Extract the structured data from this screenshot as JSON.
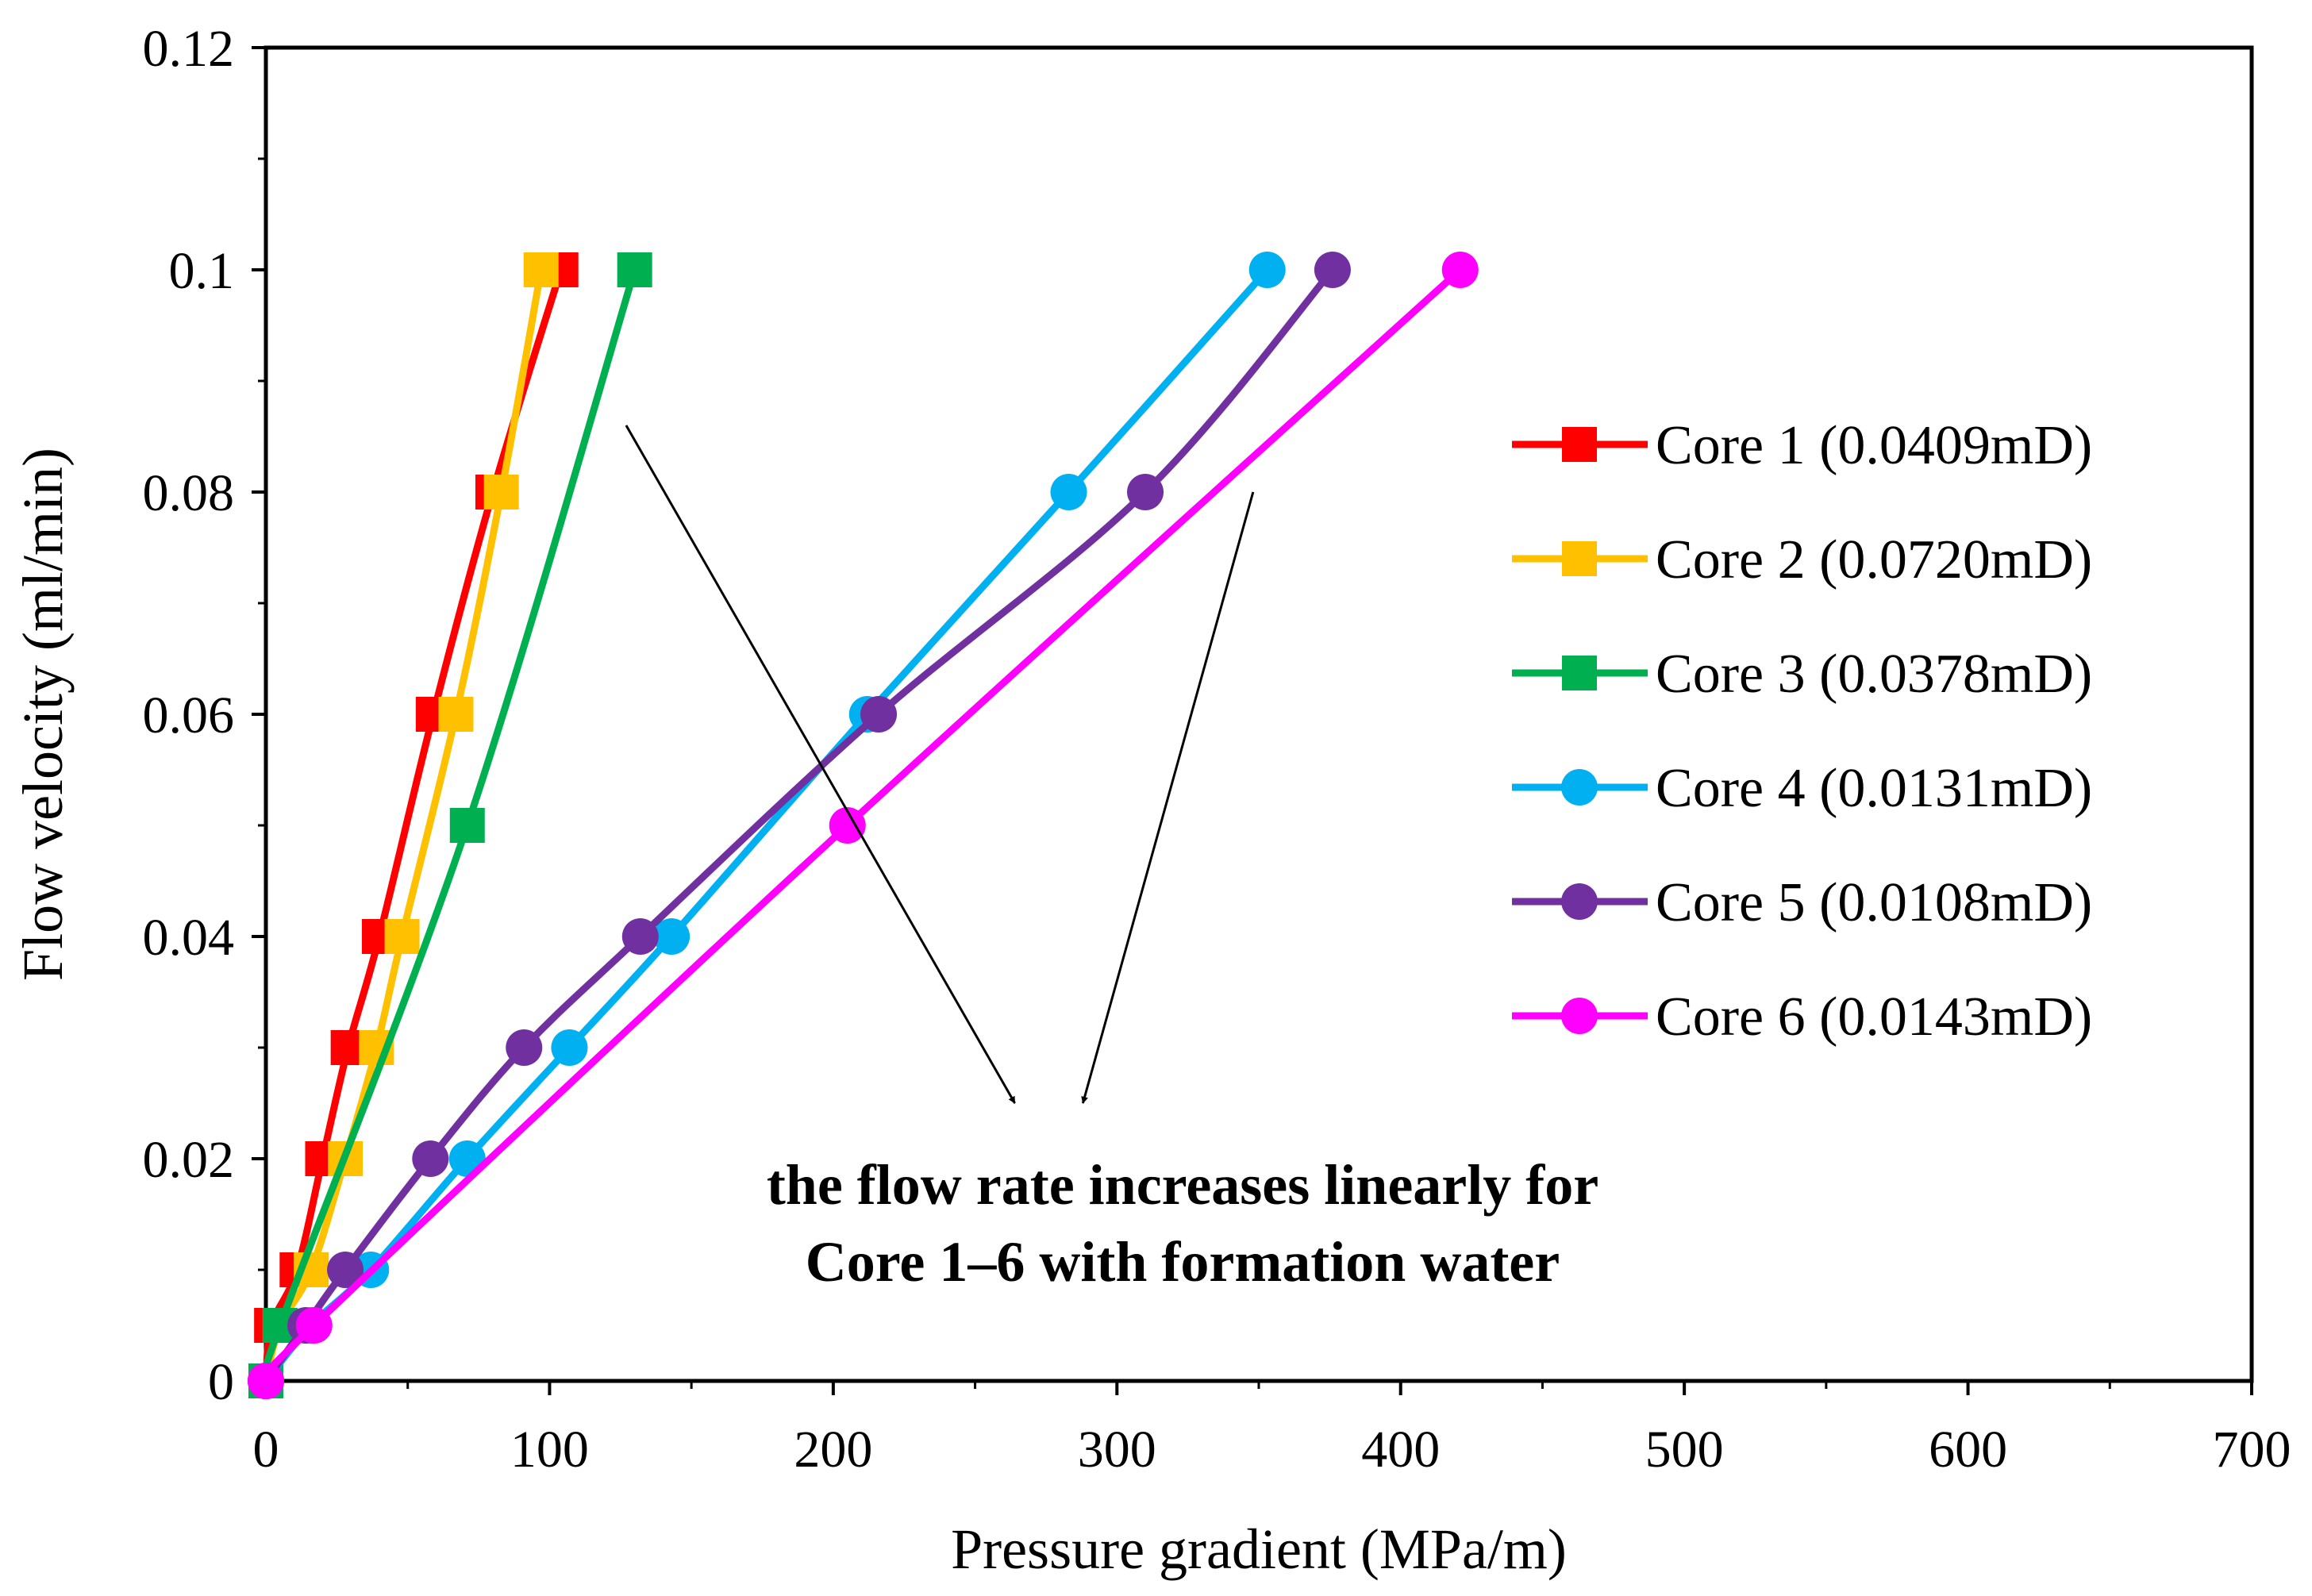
{
  "chart_data": {
    "type": "line",
    "title": "",
    "xlabel": "Pressure gradient (MPa/m)",
    "ylabel": "Flow velocity (ml/min)",
    "xlim": [
      0,
      700
    ],
    "ylim": [
      0,
      0.12
    ],
    "xticks": [
      0,
      100,
      200,
      300,
      400,
      500,
      600,
      700
    ],
    "yticks": [
      0,
      0.02,
      0.04,
      0.06,
      0.08,
      0.1,
      0.12
    ],
    "xtick_labels": [
      "0",
      "100",
      "200",
      "300",
      "400",
      "500",
      "600",
      "700"
    ],
    "ytick_labels": [
      "0",
      "0.02",
      "0.04",
      "0.06",
      "0.08",
      "0.1",
      "0.12"
    ],
    "grid": false,
    "legend_position": "right",
    "series": [
      {
        "name": "Core 1 (0.0409mD)",
        "color": "#ff0000",
        "marker": "square",
        "x": [
          0,
          2,
          11,
          20,
          29,
          40,
          59,
          80,
          104
        ],
        "y": [
          0,
          0.005,
          0.01,
          0.02,
          0.03,
          0.04,
          0.06,
          0.08,
          0.1
        ]
      },
      {
        "name": "Core 2 (0.0720mD)",
        "color": "#ffc000",
        "marker": "square",
        "x": [
          0,
          5,
          16,
          28,
          39,
          48,
          67,
          83,
          97
        ],
        "y": [
          0,
          0.005,
          0.01,
          0.02,
          0.03,
          0.04,
          0.06,
          0.08,
          0.1
        ]
      },
      {
        "name": "Core 3 (0.0378mD)",
        "color": "#00b050",
        "marker": "square",
        "x": [
          0,
          5,
          71,
          130
        ],
        "y": [
          0,
          0.005,
          0.05,
          0.1
        ]
      },
      {
        "name": "Core 4 (0.0131mD)",
        "color": "#00b0f0",
        "marker": "circle",
        "x": [
          0,
          16,
          37,
          71,
          107,
          143,
          212,
          283,
          353
        ],
        "y": [
          0,
          0.005,
          0.01,
          0.02,
          0.03,
          0.04,
          0.06,
          0.08,
          0.1
        ]
      },
      {
        "name": "Core 5 (0.0108mD)",
        "color": "#7030a0",
        "marker": "circle",
        "x": [
          0,
          14,
          28,
          58,
          91,
          132,
          216,
          310,
          376
        ],
        "y": [
          0,
          0.005,
          0.01,
          0.02,
          0.03,
          0.04,
          0.06,
          0.08,
          0.1
        ]
      },
      {
        "name": "Core 6 (0.0143mD)",
        "color": "#ff00ff",
        "marker": "circle",
        "x": [
          0,
          17,
          205,
          421
        ],
        "y": [
          0,
          0.005,
          0.05,
          0.1
        ]
      }
    ],
    "annotations": {
      "text_lines": [
        "the flow rate increases linearly for",
        "Core 1–6 with formation water"
      ],
      "arrows": [
        {
          "from": [
            127,
            0.086
          ],
          "to": [
            264,
            0.025
          ]
        },
        {
          "from": [
            348,
            0.08
          ],
          "to": [
            288,
            0.025
          ]
        }
      ]
    }
  }
}
